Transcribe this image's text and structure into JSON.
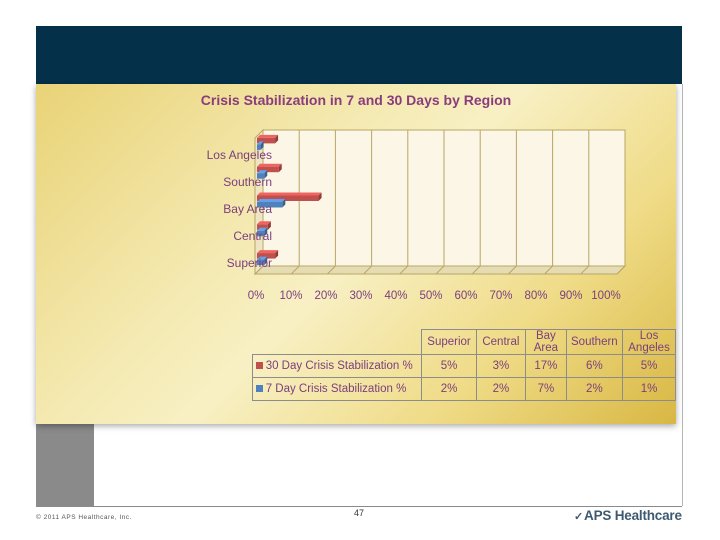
{
  "chart_data": {
    "type": "bar",
    "orientation": "horizontal",
    "title": "Crisis Stabilization in 7 and 30 Days by Region",
    "categories": [
      "Superior",
      "Central",
      "Bay Area",
      "Southern",
      "Los Angeles"
    ],
    "series": [
      {
        "name": "30 Day Crisis Stabilization %",
        "color": "#c0504d",
        "values": [
          5,
          3,
          17,
          6,
          5
        ],
        "labels": [
          "5%",
          "3%",
          "17%",
          "6%",
          "5%"
        ]
      },
      {
        "name": "7 Day Crisis Stabilization %",
        "color": "#4f81bd",
        "values": [
          2,
          2,
          7,
          2,
          1
        ],
        "labels": [
          "2%",
          "2%",
          "7%",
          "2%",
          "1%"
        ]
      }
    ],
    "xlim": [
      0,
      100
    ],
    "x_ticks": [
      "0%",
      "10%",
      "20%",
      "30%",
      "40%",
      "50%",
      "60%",
      "70%",
      "80%",
      "90%",
      "100%"
    ],
    "grid": true,
    "data_table": true
  },
  "footer": {
    "copyright": "© 2011 APS Healthcare, Inc.",
    "page_number": "47",
    "logo_text": "APS Healthcare"
  }
}
